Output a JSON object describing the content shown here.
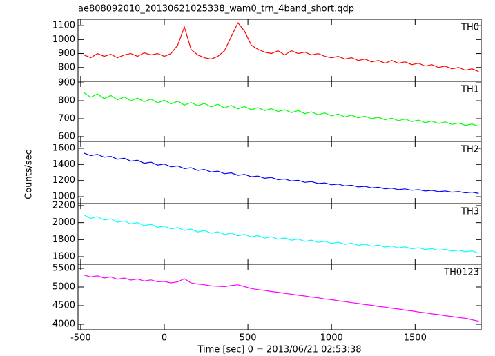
{
  "chart_data": {
    "type": "line",
    "title": "ae808092010_20130621025338_wam0_trn_4band_short.qdp",
    "xlabel": "Time [sec] 0 = 2013/06/21 02:53:38",
    "ylabel": "Counts/sec",
    "xlim": [
      -516,
      1895
    ],
    "xticks": [
      -500,
      0,
      500,
      1000,
      1500
    ],
    "x": [
      -480,
      -440,
      -400,
      -360,
      -320,
      -280,
      -240,
      -200,
      -160,
      -120,
      -80,
      -40,
      0,
      40,
      80,
      120,
      160,
      200,
      240,
      280,
      320,
      360,
      400,
      440,
      480,
      520,
      560,
      600,
      640,
      680,
      720,
      760,
      800,
      840,
      880,
      920,
      960,
      1000,
      1040,
      1080,
      1120,
      1160,
      1200,
      1240,
      1280,
      1320,
      1360,
      1400,
      1440,
      1480,
      1520,
      1560,
      1600,
      1640,
      1680,
      1720,
      1760,
      1800,
      1840,
      1880
    ],
    "series": [
      {
        "name": "TH0",
        "color": "#ff0000",
        "ylim": [
          700,
          1145
        ],
        "yticks": [
          800,
          900,
          1000,
          1100
        ],
        "values": [
          890,
          870,
          900,
          880,
          895,
          870,
          890,
          900,
          880,
          905,
          890,
          900,
          880,
          900,
          960,
          1090,
          930,
          890,
          870,
          860,
          880,
          920,
          1020,
          1120,
          1060,
          960,
          930,
          910,
          900,
          920,
          890,
          920,
          900,
          910,
          890,
          900,
          880,
          870,
          880,
          860,
          870,
          850,
          860,
          840,
          850,
          830,
          850,
          830,
          840,
          820,
          830,
          810,
          820,
          800,
          810,
          790,
          800,
          780,
          790,
          770
        ]
      },
      {
        "name": "TH1",
        "color": "#00ff00",
        "ylim": [
          573,
          908
        ],
        "yticks": [
          600,
          700,
          800,
          900
        ],
        "values": [
          845,
          820,
          838,
          812,
          830,
          805,
          822,
          800,
          815,
          795,
          810,
          788,
          803,
          782,
          798,
          776,
          790,
          772,
          785,
          766,
          780,
          760,
          774,
          755,
          768,
          750,
          762,
          745,
          756,
          740,
          750,
          734,
          745,
          728,
          738,
          722,
          732,
          716,
          726,
          710,
          720,
          705,
          714,
          700,
          708,
          694,
          703,
          689,
          698,
          684,
          692,
          678,
          687,
          673,
          682,
          668,
          676,
          663,
          670,
          658
        ]
      },
      {
        "name": "TH2",
        "color": "#0000ff",
        "ylim": [
          915,
          1685
        ],
        "yticks": [
          1000,
          1200,
          1400,
          1600
        ],
        "values": [
          1540,
          1510,
          1525,
          1490,
          1500,
          1465,
          1478,
          1440,
          1452,
          1415,
          1428,
          1392,
          1405,
          1370,
          1382,
          1348,
          1360,
          1326,
          1338,
          1305,
          1316,
          1285,
          1296,
          1265,
          1276,
          1247,
          1256,
          1228,
          1238,
          1210,
          1220,
          1194,
          1203,
          1178,
          1187,
          1163,
          1171,
          1148,
          1156,
          1134,
          1142,
          1121,
          1129,
          1109,
          1117,
          1098,
          1106,
          1088,
          1096,
          1079,
          1087,
          1070,
          1078,
          1062,
          1070,
          1055,
          1063,
          1048,
          1056,
          1040
        ]
      },
      {
        "name": "TH3",
        "color": "#00ffff",
        "ylim": [
          1511,
          2224
        ],
        "yticks": [
          1600,
          1800,
          2000,
          2200
        ],
        "values": [
          2090,
          2050,
          2070,
          2030,
          2045,
          2005,
          2020,
          1985,
          2000,
          1965,
          1980,
          1945,
          1960,
          1925,
          1942,
          1908,
          1925,
          1890,
          1908,
          1875,
          1892,
          1860,
          1877,
          1846,
          1862,
          1832,
          1848,
          1818,
          1834,
          1805,
          1820,
          1792,
          1807,
          1780,
          1794,
          1768,
          1782,
          1756,
          1770,
          1745,
          1758,
          1734,
          1747,
          1723,
          1736,
          1713,
          1725,
          1703,
          1715,
          1693,
          1705,
          1684,
          1695,
          1675,
          1686,
          1666,
          1677,
          1657,
          1668,
          1640
        ]
      },
      {
        "name": "TH0123",
        "color": "#ff00ff",
        "ylim": [
          3852,
          5611
        ],
        "yticks": [
          4000,
          4500,
          5000,
          5500
        ],
        "values": [
          5320,
          5270,
          5300,
          5240,
          5270,
          5210,
          5240,
          5185,
          5215,
          5160,
          5190,
          5140,
          5150,
          5110,
          5140,
          5220,
          5110,
          5080,
          5060,
          5030,
          5020,
          5010,
          5040,
          5060,
          5010,
          4960,
          4930,
          4910,
          4880,
          4860,
          4830,
          4810,
          4780,
          4760,
          4730,
          4710,
          4680,
          4660,
          4630,
          4610,
          4580,
          4560,
          4530,
          4510,
          4480,
          4460,
          4430,
          4410,
          4380,
          4360,
          4330,
          4310,
          4280,
          4260,
          4230,
          4210,
          4180,
          4160,
          4120,
          4080
        ]
      }
    ]
  }
}
